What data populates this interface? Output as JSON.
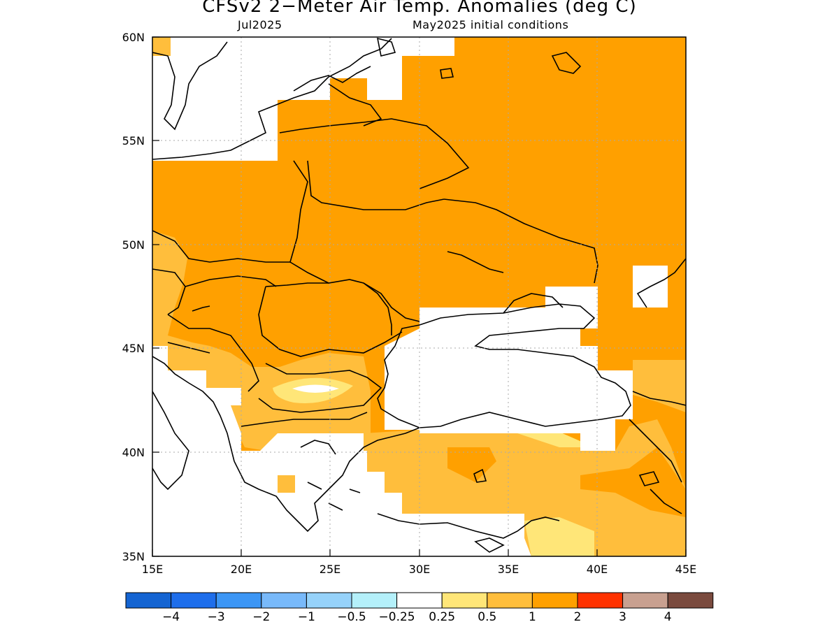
{
  "title": "CFSv2 2−Meter Air Temp. Anomalies (deg C)",
  "subtitle_left": "Jul2025",
  "subtitle_right": "May2025 initial conditions",
  "map": {
    "lon_range": [
      15,
      45
    ],
    "lat_range": [
      35,
      60
    ],
    "lon_ticks": [
      "15E",
      "20E",
      "25E",
      "30E",
      "35E",
      "40E",
      "45E"
    ],
    "lat_ticks": [
      "60N",
      "55N",
      "50N",
      "45N",
      "40N",
      "35N"
    ],
    "sea_label": ""
  },
  "colorbar": {
    "colors": [
      "#1464d2",
      "#1e6eeb",
      "#3c96f5",
      "#78b9fa",
      "#96d2fa",
      "#b4f0fa",
      "#ffffff",
      "#ffe678",
      "#ffbe3c",
      "#ffa000",
      "#ff3200",
      "#c8a090",
      "#7a4a3e"
    ],
    "labels": [
      "−4",
      "−3",
      "−2",
      "−1",
      "−0.5",
      "−0.25",
      "0.25",
      "0.5",
      "1",
      "2",
      "3",
      "4"
    ]
  },
  "legend_colors": {
    "level_0_5": "#ffe678",
    "level_1": "#ffbe3c",
    "level_2": "#ffa000",
    "neutral": "#ffffff",
    "coastline": "#000000"
  }
}
